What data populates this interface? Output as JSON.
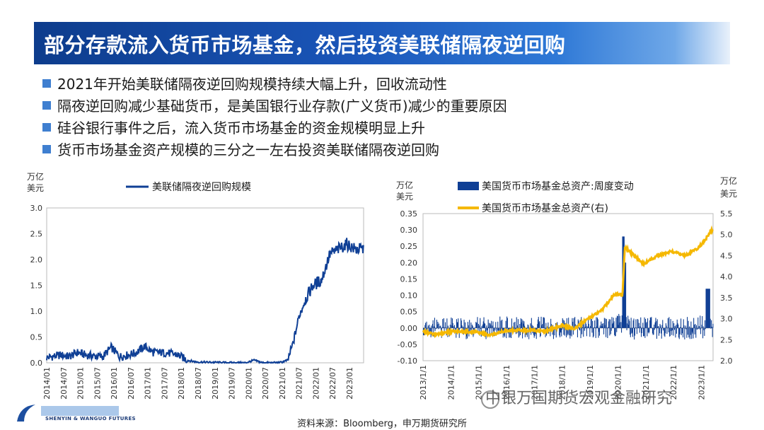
{
  "title": "部分存款流入货币市场基金，然后投资美联储隔夜逆回购",
  "bullets": [
    "2021年开始美联储隔夜逆回购规模持续大幅上升，回收流动性",
    "隔夜逆回购减少基础货币，是美国银行业存款(广义货币)减少的重要原因",
    "硅谷银行事件之后，流入货币市场基金的资金规模明显上升",
    "货币市场基金资产规模的三分之一左右投资美联储隔夜逆回购"
  ],
  "source": "资料来源：Bloomberg，申万期货研究所",
  "watermark": "中银万国期货宏观金融研究",
  "logo": {
    "text": "SHENYIN & WANGUO FUTURES"
  },
  "colors": {
    "title_bg": "#1a55b8",
    "bullet": "#3f7fd0",
    "series_blue": "#0f3f95",
    "series_gold": "#f5b800"
  },
  "chart_data": [
    {
      "type": "line",
      "unit": [
        "万亿",
        "美元"
      ],
      "legend": [
        "美联储隔夜逆回购规模"
      ],
      "ylim": [
        0,
        3.0
      ],
      "yticks": [
        "3.0",
        "2.5",
        "2.0",
        "1.5",
        "1.0",
        "0.5",
        "0.0"
      ],
      "xticks": [
        "2014/01",
        "2014/07",
        "2015/01",
        "2015/07",
        "2016/01",
        "2016/07",
        "2017/01",
        "2017/07",
        "2018/01",
        "2018/07",
        "2019/01",
        "2019/07",
        "2020/01",
        "2020/07",
        "2021/01",
        "2021/07",
        "2022/01",
        "2022/07",
        "2023/01"
      ],
      "series": [
        {
          "name": "美联储隔夜逆回购规模",
          "points": [
            [
              "2014-01",
              0.1
            ],
            [
              "2014-03",
              0.12
            ],
            [
              "2014-06",
              0.15
            ],
            [
              "2014-09",
              0.12
            ],
            [
              "2014-12",
              0.2
            ],
            [
              "2015-03",
              0.15
            ],
            [
              "2015-06",
              0.13
            ],
            [
              "2015-09",
              0.12
            ],
            [
              "2015-12",
              0.3
            ],
            [
              "2016-03",
              0.12
            ],
            [
              "2016-06",
              0.15
            ],
            [
              "2016-09",
              0.2
            ],
            [
              "2016-12",
              0.32
            ],
            [
              "2017-03",
              0.2
            ],
            [
              "2017-06",
              0.2
            ],
            [
              "2017-09",
              0.18
            ],
            [
              "2017-12",
              0.15
            ],
            [
              "2018-03",
              0.05
            ],
            [
              "2018-06",
              0.02
            ],
            [
              "2018-09",
              0.01
            ],
            [
              "2018-12",
              0.01
            ],
            [
              "2019-06",
              0.0
            ],
            [
              "2019-12",
              0.0
            ],
            [
              "2020-03",
              0.05
            ],
            [
              "2020-06",
              0.0
            ],
            [
              "2020-12",
              0.0
            ],
            [
              "2021-03",
              0.05
            ],
            [
              "2021-05",
              0.4
            ],
            [
              "2021-07",
              0.9
            ],
            [
              "2021-09",
              1.2
            ],
            [
              "2021-12",
              1.5
            ],
            [
              "2022-03",
              1.6
            ],
            [
              "2022-06",
              2.1
            ],
            [
              "2022-09",
              2.2
            ],
            [
              "2022-12",
              2.3
            ],
            [
              "2023-03",
              2.2
            ],
            [
              "2023-05",
              2.2
            ]
          ]
        }
      ]
    },
    {
      "type": "bar+line",
      "unit_left": [
        "万亿",
        "美元"
      ],
      "unit_right": [
        "万亿",
        "美元"
      ],
      "legend": [
        "美国货币市场基金总资产:周度变动",
        "美国货币市场基金总资产(右)"
      ],
      "ylim_left": [
        -0.1,
        0.35
      ],
      "ylim_right": [
        2.0,
        5.5
      ],
      "yticks_left": [
        "0.35",
        "0.30",
        "0.25",
        "0.20",
        "0.15",
        "0.10",
        "0.05",
        "0.00",
        "-0.05",
        "-0.10"
      ],
      "yticks_right": [
        "5.5",
        "5.0",
        "4.5",
        "4.0",
        "3.5",
        "3.0",
        "2.5",
        "2.0"
      ],
      "xticks": [
        "2013/1/1",
        "2014/1/1",
        "2015/1/1",
        "2016/1/1",
        "2017/1/1",
        "2018/1/1",
        "2019/1/1",
        "2020/1/1",
        "2021/1/1",
        "2022/1/1",
        "2023/1/1"
      ],
      "series": [
        {
          "name": "美国货币市场基金总资产:周度变动",
          "axis": "left",
          "points": [
            [
              "2013-01",
              0.02
            ],
            [
              "2013-06",
              -0.02
            ],
            [
              "2013-12",
              0.03
            ],
            [
              "2014-06",
              0.02
            ],
            [
              "2014-12",
              -0.03
            ],
            [
              "2015-06",
              0.02
            ],
            [
              "2015-12",
              0.03
            ],
            [
              "2016-06",
              -0.02
            ],
            [
              "2016-12",
              0.02
            ],
            [
              "2017-06",
              0.03
            ],
            [
              "2017-12",
              -0.02
            ],
            [
              "2018-06",
              0.02
            ],
            [
              "2018-12",
              0.03
            ],
            [
              "2019-06",
              0.03
            ],
            [
              "2019-12",
              0.04
            ],
            [
              "2020-03",
              0.28
            ],
            [
              "2020-06",
              -0.05
            ],
            [
              "2020-12",
              0.02
            ],
            [
              "2021-06",
              0.03
            ],
            [
              "2021-12",
              -0.03
            ],
            [
              "2022-06",
              0.02
            ],
            [
              "2022-12",
              -0.02
            ],
            [
              "2023-03",
              0.12
            ],
            [
              "2023-05",
              0.05
            ]
          ]
        },
        {
          "name": "美国货币市场基金总资产(右)",
          "axis": "right",
          "points": [
            [
              "2013-01",
              2.7
            ],
            [
              "2013-06",
              2.62
            ],
            [
              "2014-01",
              2.7
            ],
            [
              "2014-12",
              2.68
            ],
            [
              "2015-06",
              2.6
            ],
            [
              "2016-01",
              2.72
            ],
            [
              "2016-12",
              2.72
            ],
            [
              "2017-06",
              2.7
            ],
            [
              "2018-01",
              2.85
            ],
            [
              "2018-06",
              2.75
            ],
            [
              "2018-12",
              3.0
            ],
            [
              "2019-06",
              3.2
            ],
            [
              "2019-12",
              3.6
            ],
            [
              "2020-03",
              3.55
            ],
            [
              "2020-04",
              4.7
            ],
            [
              "2020-06",
              4.6
            ],
            [
              "2020-12",
              4.3
            ],
            [
              "2021-06",
              4.5
            ],
            [
              "2021-12",
              4.6
            ],
            [
              "2022-06",
              4.5
            ],
            [
              "2022-12",
              4.7
            ],
            [
              "2023-03",
              4.9
            ],
            [
              "2023-05",
              5.1
            ]
          ]
        }
      ]
    }
  ]
}
